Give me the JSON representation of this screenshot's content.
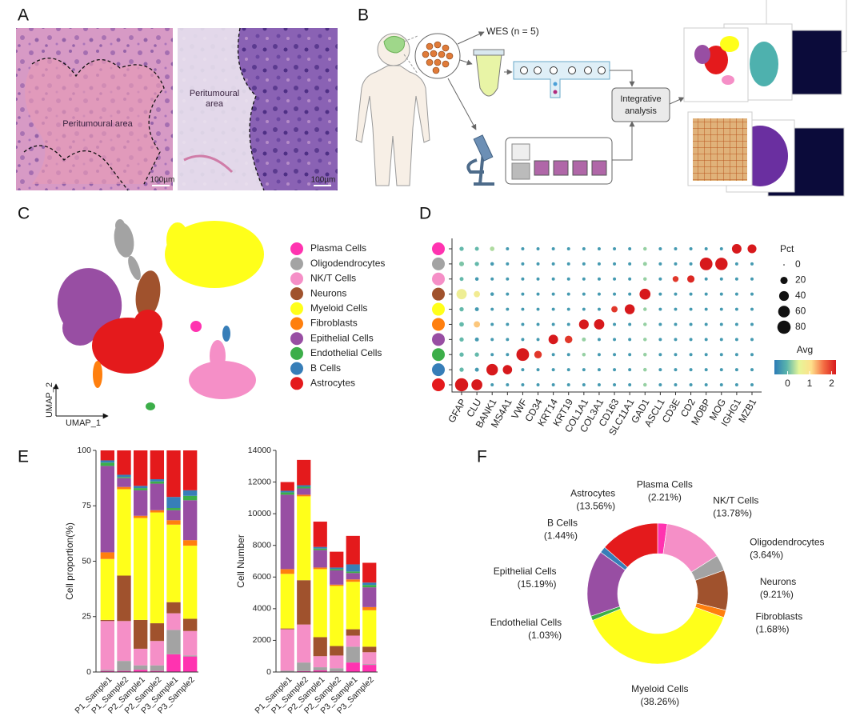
{
  "panel_labels": [
    "A",
    "B",
    "C",
    "D",
    "E",
    "F"
  ],
  "panel_a": {
    "images": [
      {
        "annotation_lines": [
          "Peritumoural area"
        ],
        "scale_bar": "100µm"
      },
      {
        "annotation_lines": [
          "Peritumoural",
          "area"
        ],
        "scale_bar": "100µm"
      }
    ]
  },
  "panel_b": {
    "wes_label": "WES (n = 5)",
    "integrative_lines": [
      "Integrative",
      "analysis"
    ]
  },
  "umap": {
    "x_label": "UMAP_1",
    "y_label": "UMAP_2",
    "legend": [
      {
        "name": "Plasma Cells",
        "color": "#ff33b0"
      },
      {
        "name": "Oligodendrocytes",
        "color": "#a3a3a3"
      },
      {
        "name": "NK/T Cells",
        "color": "#f58fc7"
      },
      {
        "name": "Neurons",
        "color": "#a0522d"
      },
      {
        "name": "Myeloid Cells",
        "color": "#ffff1a"
      },
      {
        "name": "Fibroblasts",
        "color": "#ff7f0e"
      },
      {
        "name": "Epithelial Cells",
        "color": "#984ea3"
      },
      {
        "name": "Endothelial Cells",
        "color": "#3cae49"
      },
      {
        "name": "B Cells",
        "color": "#377eb8"
      },
      {
        "name": "Astrocytes",
        "color": "#e41a1c"
      }
    ]
  },
  "chart_data": [
    {
      "type": "dot",
      "categories": [
        "GFAP",
        "CLU",
        "BANK1",
        "MS4A1",
        "VWF",
        "CD34",
        "KRT14",
        "KRT19",
        "COL1A1",
        "COL3A1",
        "CD163",
        "SLC11A1",
        "GAD1",
        "ASCL1",
        "CD3E",
        "CD2",
        "MOBP",
        "MOG",
        "IGHG1",
        "MZB1"
      ],
      "rows": [
        {
          "color": "#ff33b0",
          "pct": [
            5,
            4,
            6,
            2,
            2,
            2,
            2,
            2,
            2,
            2,
            2,
            2,
            3,
            2,
            2,
            2,
            2,
            2,
            38,
            32
          ],
          "avg": [
            0,
            0,
            0.3,
            -0.3,
            -0.3,
            -0.3,
            -0.3,
            -0.3,
            -0.3,
            -0.3,
            -0.3,
            -0.3,
            0.2,
            -0.3,
            -0.3,
            -0.3,
            -0.3,
            -0.3,
            2.2,
            2.2
          ]
        },
        {
          "color": "#a3a3a3",
          "pct": [
            7,
            5,
            3,
            2,
            2,
            2,
            2,
            2,
            2,
            2,
            2,
            2,
            4,
            2,
            2,
            2,
            72,
            68,
            2,
            2
          ],
          "avg": [
            0.1,
            0,
            -0.3,
            -0.3,
            -0.3,
            -0.3,
            -0.3,
            -0.3,
            -0.3,
            -0.3,
            -0.3,
            -0.3,
            0.2,
            -0.3,
            -0.3,
            -0.3,
            2.2,
            2.2,
            -0.3,
            -0.3
          ]
        },
        {
          "color": "#f58fc7",
          "pct": [
            4,
            3,
            2,
            2,
            2,
            2,
            2,
            2,
            2,
            2,
            2,
            2,
            3,
            2,
            12,
            20,
            2,
            2,
            2,
            2
          ],
          "avg": [
            0,
            -0.3,
            -0.3,
            -0.3,
            -0.3,
            -0.3,
            -0.3,
            -0.3,
            -0.3,
            -0.3,
            -0.3,
            -0.3,
            0.2,
            -0.3,
            2,
            2.1,
            -0.3,
            -0.3,
            -0.3,
            -0.3
          ]
        },
        {
          "color": "#a0522d",
          "pct": [
            45,
            14,
            3,
            2,
            2,
            2,
            2,
            2,
            2,
            2,
            2,
            2,
            52,
            2,
            2,
            2,
            2,
            2,
            2,
            2
          ],
          "avg": [
            0.7,
            0.8,
            -0.3,
            -0.3,
            -0.3,
            -0.3,
            -0.3,
            -0.3,
            -0.3,
            -0.3,
            -0.3,
            -0.3,
            2.2,
            -0.3,
            -0.3,
            -0.3,
            -0.3,
            -0.3,
            -0.3,
            -0.3
          ]
        },
        {
          "color": "#ffff1a",
          "pct": [
            5,
            4,
            2,
            2,
            2,
            2,
            2,
            2,
            2,
            2,
            14,
            42,
            3,
            2,
            2,
            2,
            2,
            2,
            2,
            2
          ],
          "avg": [
            0,
            -0.3,
            -0.3,
            -0.3,
            -0.3,
            -0.3,
            -0.3,
            -0.3,
            -0.3,
            -0.3,
            2,
            2.2,
            0.2,
            -0.3,
            -0.3,
            -0.3,
            -0.3,
            -0.3,
            -0.3,
            -0.3
          ]
        },
        {
          "color": "#ff7f0e",
          "pct": [
            6,
            14,
            2,
            2,
            2,
            2,
            2,
            2,
            40,
            45,
            2,
            2,
            3,
            2,
            2,
            2,
            2,
            2,
            2,
            2
          ],
          "avg": [
            0,
            1.2,
            -0.3,
            -0.3,
            -0.3,
            -0.3,
            -0.3,
            -0.3,
            2.2,
            2.2,
            -0.3,
            -0.3,
            0.2,
            -0.3,
            -0.3,
            -0.3,
            -0.3,
            -0.3,
            -0.3,
            -0.3
          ]
        },
        {
          "color": "#984ea3",
          "pct": [
            5,
            4,
            2,
            2,
            2,
            2,
            38,
            22,
            4,
            2,
            2,
            2,
            3,
            2,
            2,
            2,
            2,
            2,
            2,
            2
          ],
          "avg": [
            0,
            -0.3,
            -0.3,
            -0.3,
            -0.3,
            -0.3,
            2.2,
            2,
            0.2,
            -0.3,
            -0.3,
            -0.3,
            0.2,
            -0.3,
            -0.3,
            -0.3,
            -0.3,
            -0.3,
            -0.3,
            -0.3
          ]
        },
        {
          "color": "#3cae49",
          "pct": [
            5,
            5,
            2,
            2,
            72,
            22,
            2,
            2,
            3,
            2,
            2,
            2,
            3,
            2,
            2,
            2,
            2,
            2,
            2,
            2
          ],
          "avg": [
            0,
            0,
            -0.3,
            -0.3,
            2.2,
            2,
            -0.3,
            -0.3,
            0.2,
            -0.3,
            -0.3,
            -0.3,
            0.2,
            -0.3,
            -0.3,
            -0.3,
            -0.3,
            -0.3,
            -0.3,
            -0.3
          ]
        },
        {
          "color": "#377eb8",
          "pct": [
            5,
            4,
            58,
            36,
            2,
            2,
            2,
            2,
            2,
            2,
            2,
            2,
            3,
            2,
            2,
            2,
            2,
            2,
            2,
            2
          ],
          "avg": [
            0,
            -0.3,
            2.2,
            2.2,
            -0.3,
            -0.3,
            -0.3,
            -0.3,
            -0.3,
            -0.3,
            -0.3,
            -0.3,
            0.2,
            -0.3,
            -0.3,
            -0.3,
            -0.3,
            -0.3,
            -0.3,
            -0.3
          ]
        },
        {
          "color": "#e41a1c",
          "pct": [
            78,
            52,
            2,
            2,
            2,
            2,
            2,
            2,
            2,
            2,
            2,
            2,
            3,
            2,
            2,
            2,
            2,
            2,
            2,
            2
          ],
          "avg": [
            2.2,
            2.2,
            -0.3,
            -0.3,
            -0.3,
            -0.3,
            -0.3,
            -0.3,
            -0.3,
            -0.3,
            -0.3,
            -0.3,
            0.2,
            -0.3,
            -0.3,
            -0.3,
            -0.3,
            -0.3,
            -0.3,
            -0.3
          ]
        }
      ],
      "size_title": "Pct",
      "size_lim": [
        0,
        80
      ],
      "size_ticks": [
        0,
        20,
        40,
        60,
        80
      ],
      "color_title": "Avg",
      "colorlim": [
        -0.6,
        2.2
      ],
      "colorticks": [
        0,
        1,
        2
      ],
      "colormap": [
        "#2c7bb6",
        "#5ab4ac",
        "#e6f598",
        "#fee08b",
        "#f46d43",
        "#d7191c"
      ]
    },
    {
      "type": "stacked_bar",
      "ylabel": "Cell proportion(%)",
      "categories": [
        "P1_Sample1",
        "P1_Sample2",
        "P2_Sample1",
        "P2_Sample2",
        "P3_Sample1",
        "P3_Sample2"
      ],
      "ylim": [
        0,
        100
      ],
      "yticks": [
        0,
        25,
        50,
        75,
        100
      ],
      "series": [
        {
          "color": "#ff33b0",
          "values": [
            0.5,
            0.5,
            1,
            0.5,
            8,
            7
          ]
        },
        {
          "color": "#a3a3a3",
          "values": [
            0.5,
            4.5,
            2,
            2.5,
            11,
            0.5
          ]
        },
        {
          "color": "#f58fc7",
          "values": [
            22,
            18,
            7.5,
            11,
            7.5,
            11
          ]
        },
        {
          "color": "#a0522d",
          "values": [
            0.5,
            20.5,
            13,
            8,
            5,
            5.5
          ]
        },
        {
          "color": "#ffff1a",
          "values": [
            27.5,
            39,
            46,
            50,
            35,
            33
          ]
        },
        {
          "color": "#ff7f0e",
          "values": [
            3,
            1,
            1,
            1,
            2,
            2.5
          ]
        },
        {
          "color": "#984ea3",
          "values": [
            39,
            4,
            11.5,
            12,
            4.5,
            18
          ]
        },
        {
          "color": "#3cae49",
          "values": [
            1.5,
            0.5,
            1,
            1,
            1,
            2
          ]
        },
        {
          "color": "#377eb8",
          "values": [
            1,
            1,
            1,
            1,
            5,
            2.5
          ]
        },
        {
          "color": "#e41a1c",
          "values": [
            4.5,
            11,
            16,
            13,
            21,
            18
          ]
        }
      ]
    },
    {
      "type": "stacked_bar",
      "ylabel": "Cell Number",
      "categories": [
        "P1_Sample1",
        "P1_Sample2",
        "P2_Sample1",
        "P2_Sample2",
        "P3_Sample1",
        "P3_Sample2"
      ],
      "ylim": [
        0,
        14000
      ],
      "yticks": [
        0,
        2000,
        4000,
        6000,
        8000,
        10000,
        12000,
        14000
      ],
      "series": [
        {
          "color": "#ff33b0",
          "values": [
            30,
            60,
            100,
            40,
            600,
            450
          ]
        },
        {
          "color": "#a3a3a3",
          "values": [
            50,
            540,
            200,
            200,
            1000,
            50
          ]
        },
        {
          "color": "#f58fc7",
          "values": [
            2620,
            2400,
            700,
            800,
            700,
            750
          ]
        },
        {
          "color": "#a0522d",
          "values": [
            50,
            2800,
            1200,
            600,
            400,
            350
          ]
        },
        {
          "color": "#ffff1a",
          "values": [
            3450,
            5300,
            4300,
            3800,
            3000,
            2300
          ]
        },
        {
          "color": "#ff7f0e",
          "values": [
            300,
            100,
            100,
            80,
            150,
            200
          ]
        },
        {
          "color": "#984ea3",
          "values": [
            4700,
            400,
            1100,
            900,
            400,
            1250
          ]
        },
        {
          "color": "#3cae49",
          "values": [
            150,
            100,
            100,
            80,
            100,
            150
          ]
        },
        {
          "color": "#377eb8",
          "values": [
            100,
            100,
            100,
            100,
            450,
            150
          ]
        },
        {
          "color": "#e41a1c",
          "values": [
            550,
            1600,
            1600,
            1000,
            1800,
            1250
          ]
        }
      ]
    },
    {
      "type": "donut",
      "categories": [
        "Plasma Cells",
        "NK/T Cells",
        "Oligodendrocytes",
        "Neurons",
        "Fibroblasts",
        "Myeloid Cells",
        "Endothelial Cells",
        "Epithelial Cells",
        "B Cells",
        "Astrocytes"
      ],
      "values": [
        2.21,
        13.78,
        3.64,
        9.21,
        1.68,
        38.26,
        1.03,
        15.19,
        1.44,
        13.56
      ],
      "value_labels": [
        "(2.21%)",
        "(13.78%)",
        "(3.64%)",
        "(9.21%)",
        "(1.68%)",
        "(38.26%)",
        "(1.03%)",
        "(15.19%)",
        "(1.44%)",
        "(13.56%)"
      ],
      "colors": [
        "#ff33b0",
        "#f58fc7",
        "#a3a3a3",
        "#a0522d",
        "#ff7f0e",
        "#ffff1a",
        "#3cae49",
        "#984ea3",
        "#377eb8",
        "#e41a1c"
      ]
    }
  ]
}
